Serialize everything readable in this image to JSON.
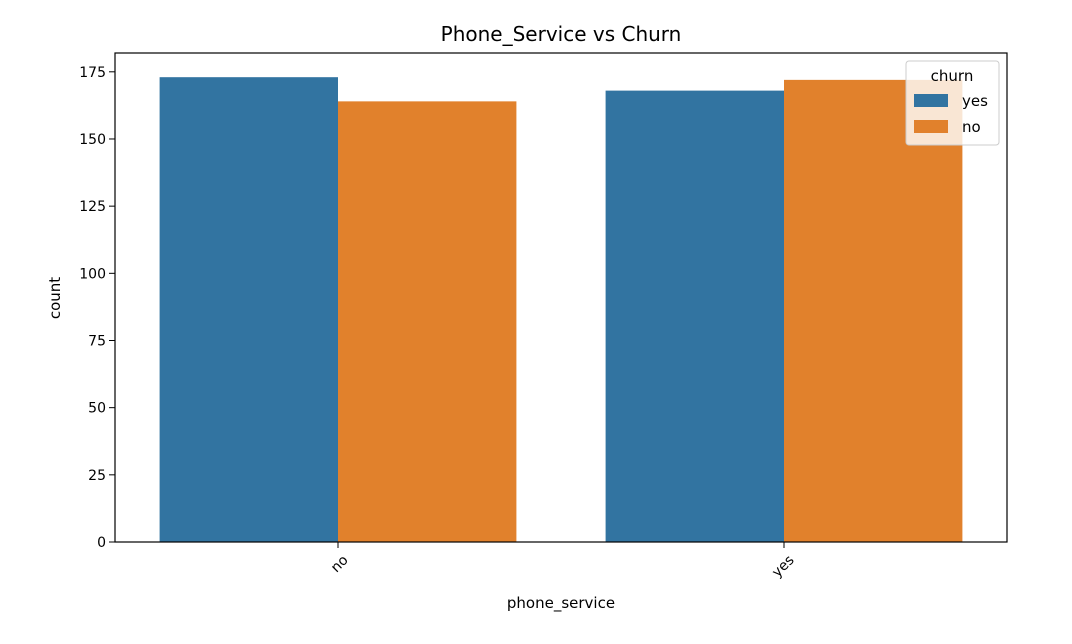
{
  "chart_data": {
    "type": "bar",
    "title": "Phone_Service vs Churn",
    "xlabel": "phone_service",
    "ylabel": "count",
    "categories": [
      "no",
      "yes"
    ],
    "series": [
      {
        "name": "yes",
        "values": [
          173,
          168
        ]
      },
      {
        "name": "no",
        "values": [
          164,
          172
        ]
      }
    ],
    "ylim": [
      0,
      182
    ],
    "yticks": [
      "0",
      "25",
      "50",
      "75",
      "100",
      "125",
      "150",
      "175"
    ],
    "grid": false,
    "legend": {
      "title": "churn",
      "position": "top-right",
      "entries": [
        "yes",
        "no"
      ]
    },
    "colors": {
      "yes": "#3274a1",
      "no": "#e1812c"
    }
  }
}
